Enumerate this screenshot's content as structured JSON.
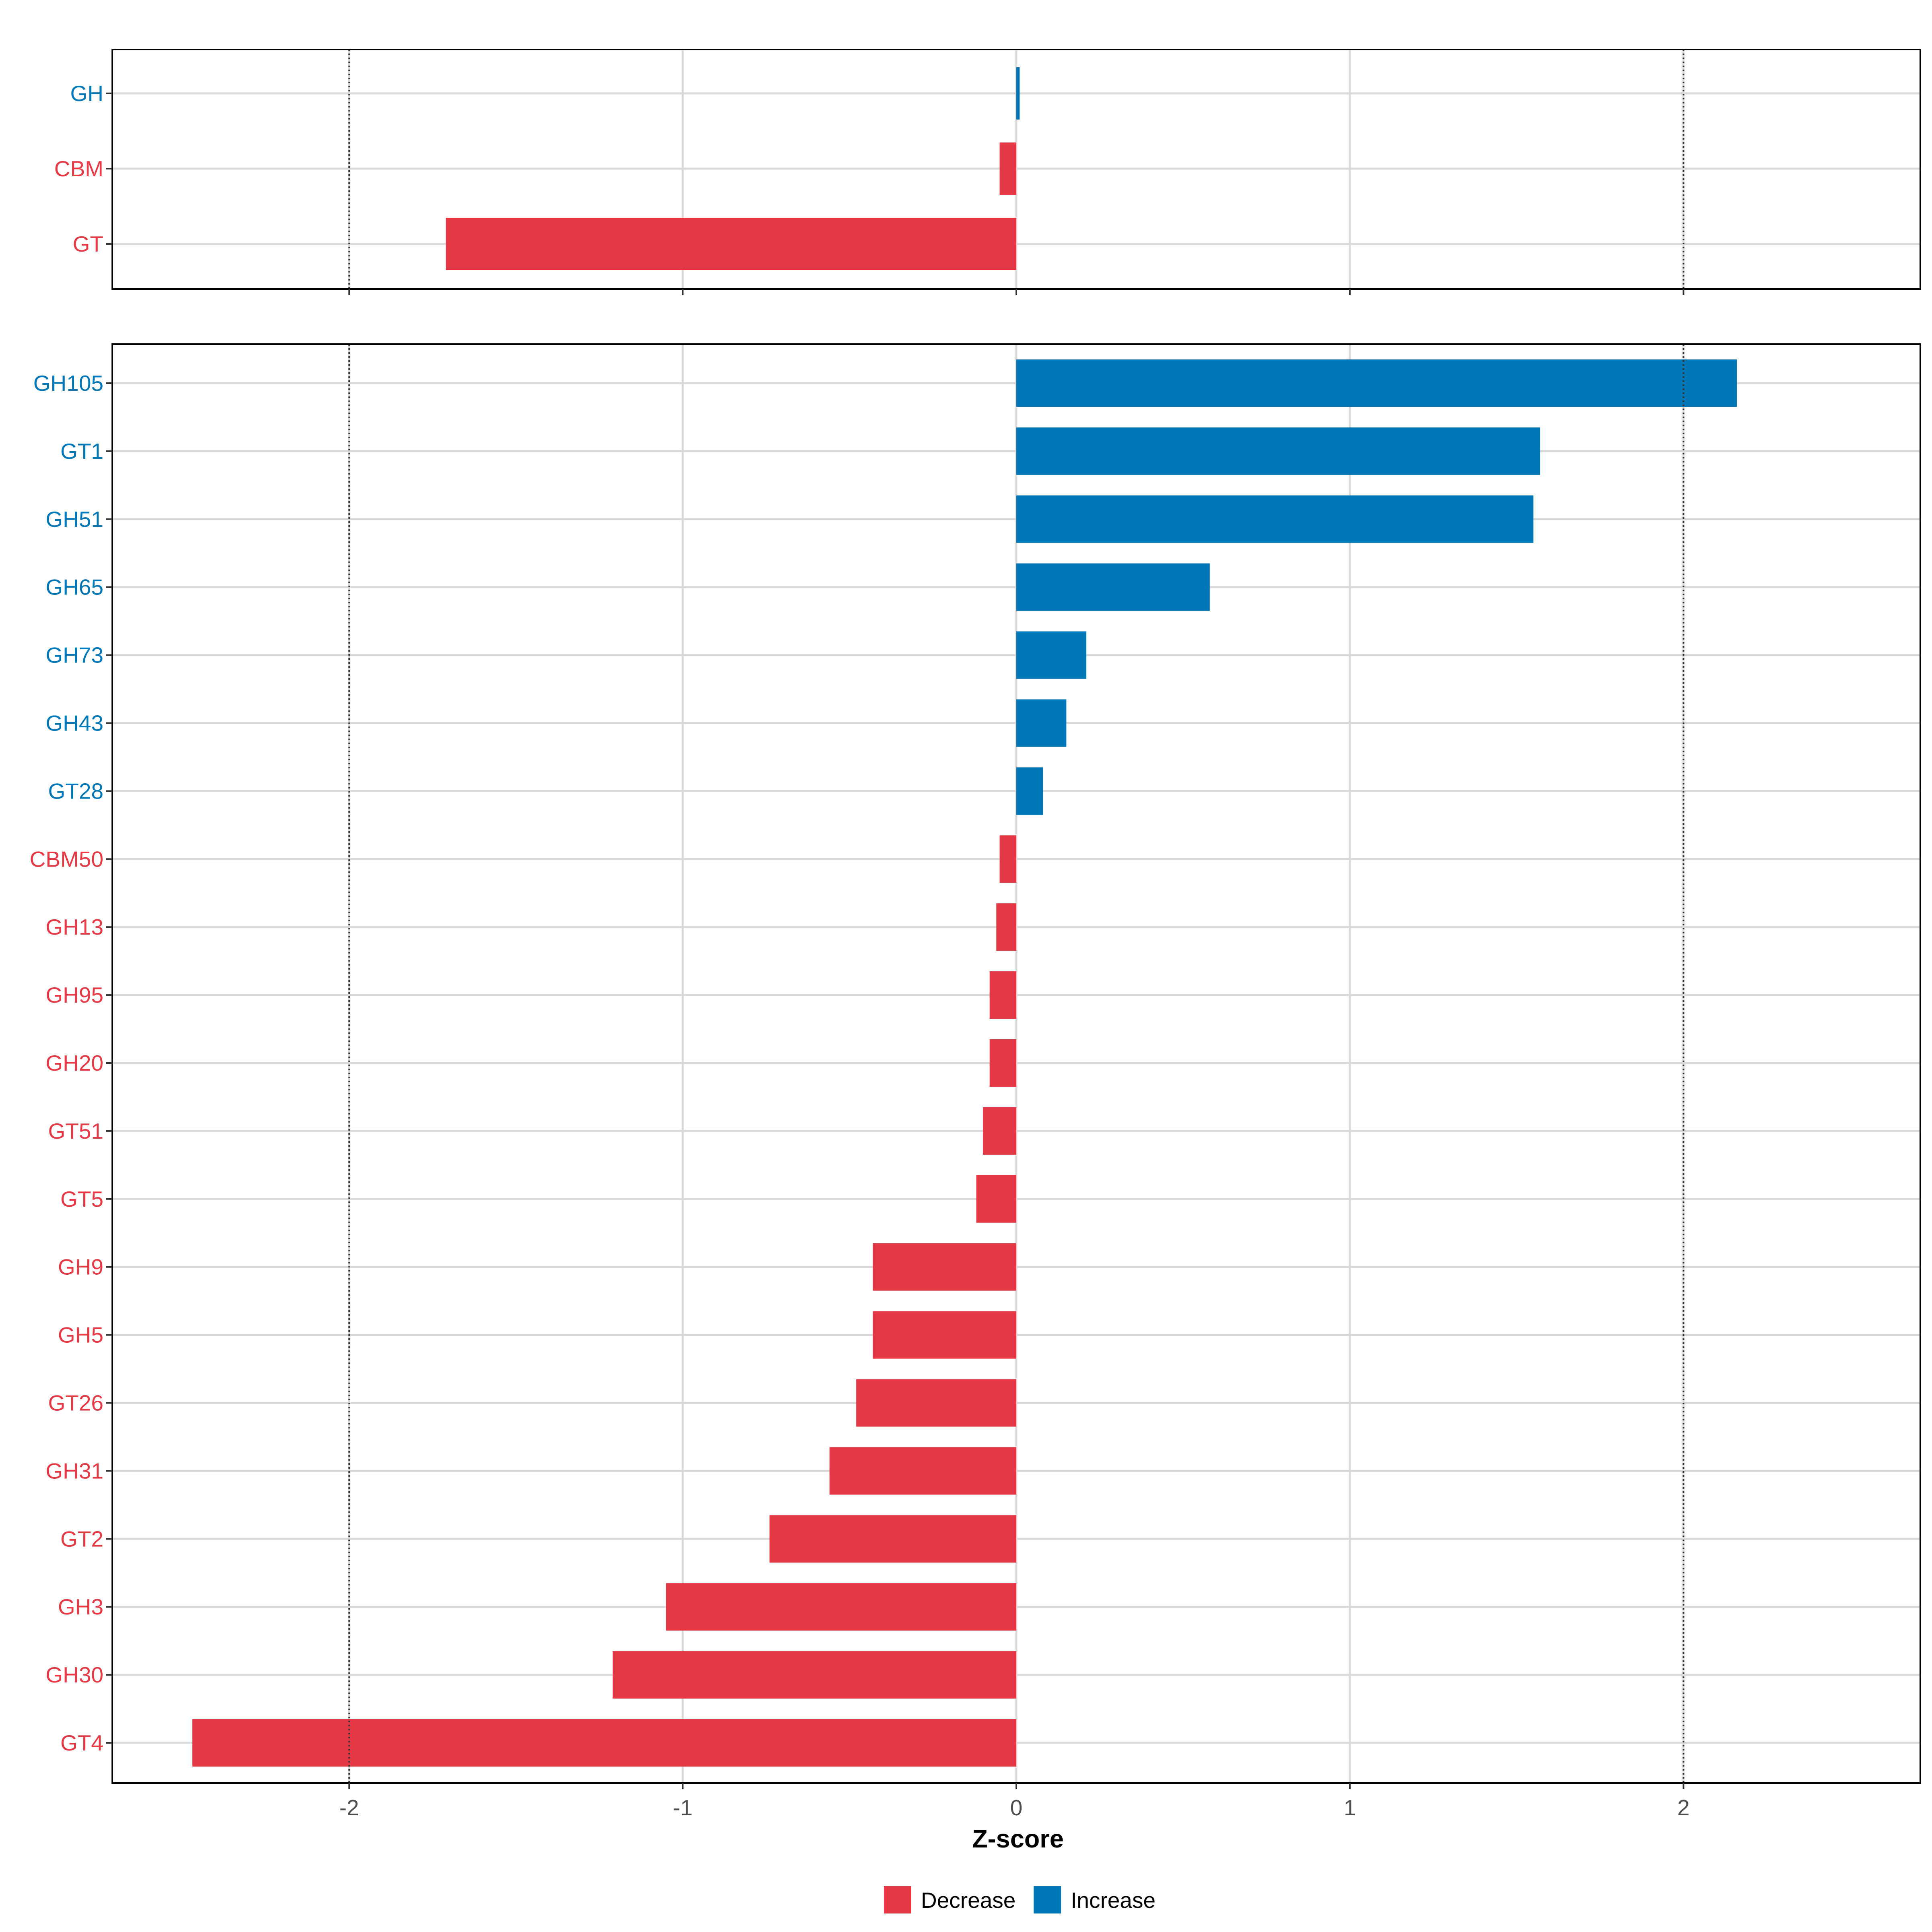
{
  "chart_data": [
    {
      "type": "bar",
      "orientation": "horizontal",
      "panel": "top",
      "categories": [
        "GH",
        "CBM",
        "GT"
      ],
      "values": [
        0.01,
        -0.05,
        -1.71
      ],
      "xlim": [
        -2.71,
        2.71
      ],
      "xticks": [
        -2,
        -1,
        0,
        1,
        2
      ],
      "reference_lines": [
        -2,
        2
      ],
      "grid": true
    },
    {
      "type": "bar",
      "orientation": "horizontal",
      "panel": "bottom",
      "categories": [
        "GH105",
        "GT1",
        "GH51",
        "GH65",
        "GH73",
        "GH43",
        "GT28",
        "CBM50",
        "GH13",
        "GH95",
        "GH20",
        "GT51",
        "GT5",
        "GH9",
        "GH5",
        "GT26",
        "GH31",
        "GT2",
        "GH3",
        "GH30",
        "GT4"
      ],
      "values": [
        2.16,
        1.57,
        1.55,
        0.58,
        0.21,
        0.15,
        0.08,
        -0.05,
        -0.06,
        -0.08,
        -0.08,
        -0.1,
        -0.12,
        -0.43,
        -0.43,
        -0.48,
        -0.56,
        -0.74,
        -1.05,
        -1.21,
        -2.47
      ],
      "xlim": [
        -2.71,
        2.71
      ],
      "xticks": [
        -2,
        -1,
        0,
        1,
        2
      ],
      "tick_labels": [
        "-2",
        "-1",
        "0",
        "1",
        "2"
      ],
      "reference_lines": [
        -2,
        2
      ],
      "xlabel": "Z-score",
      "grid": true
    }
  ],
  "legend": {
    "position": "bottom",
    "items": [
      {
        "label": "Decrease",
        "color": "#E63946"
      },
      {
        "label": "Increase",
        "color": "#0077B6"
      }
    ]
  },
  "colors": {
    "decrease": "#E63946",
    "increase": "#0077B6",
    "grid": "#D9D9D9",
    "frame": "#000000",
    "ref_line": "#333333",
    "tick_text": "#4D4D4D"
  }
}
